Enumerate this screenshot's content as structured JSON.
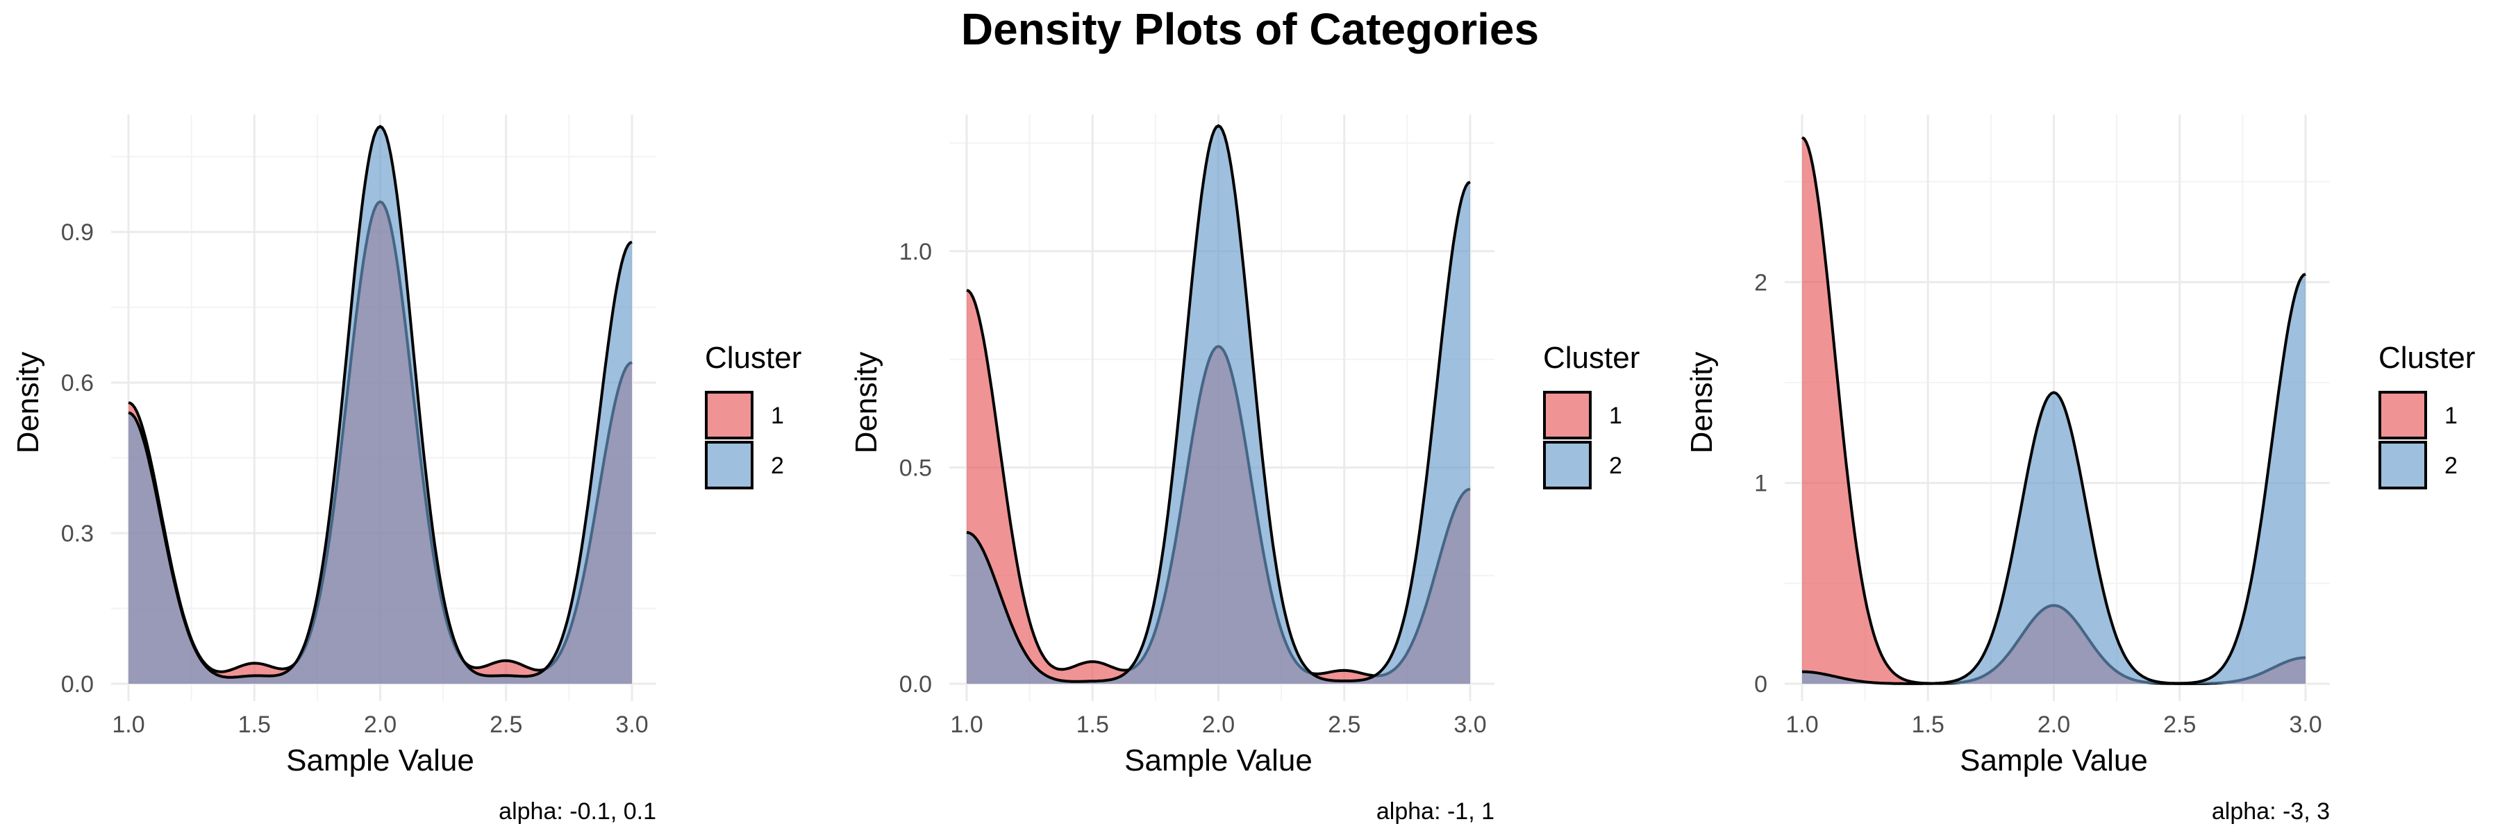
{
  "title": "Density Plots of Categories",
  "colors": {
    "cluster_1": "#E8595A",
    "cluster_2": "#6A9DCB",
    "outline": "#000000",
    "grid": "#EBEBEB"
  },
  "legend": {
    "title": "Cluster",
    "items": [
      "1",
      "2"
    ]
  },
  "chart_data": [
    {
      "type": "area",
      "title": "",
      "xlabel": "Sample Value",
      "ylabel": "Density",
      "caption": "alpha: -0.1, 0.1",
      "xlim": [
        1.0,
        3.0
      ],
      "ylim": [
        0,
        1.12
      ],
      "xticks": [
        "1.0",
        "1.5",
        "2.0",
        "2.5",
        "3.0"
      ],
      "yticks": [
        "0.0",
        "0.3",
        "0.6",
        "0.9"
      ],
      "ytick_values": [
        0.0,
        0.3,
        0.6,
        0.9
      ],
      "legend_position": "right",
      "grid": true,
      "x": [
        1.0,
        1.5,
        2.0,
        2.5,
        3.0
      ],
      "series": [
        {
          "name": "1",
          "values": [
            0.56,
            0.04,
            0.96,
            0.045,
            0.64
          ]
        },
        {
          "name": "2",
          "values": [
            0.54,
            0.015,
            1.11,
            0.015,
            0.88
          ]
        }
      ]
    },
    {
      "type": "area",
      "title": "",
      "xlabel": "Sample Value",
      "ylabel": "Density",
      "caption": "alpha: -1, 1",
      "xlim": [
        1.0,
        3.0
      ],
      "ylim": [
        0,
        1.3
      ],
      "xticks": [
        "1.0",
        "1.5",
        "2.0",
        "2.5",
        "3.0"
      ],
      "yticks": [
        "0.0",
        "0.5",
        "1.0"
      ],
      "ytick_values": [
        0.0,
        0.5,
        1.0
      ],
      "legend_position": "right",
      "grid": true,
      "x": [
        1.0,
        1.5,
        2.0,
        2.5,
        3.0
      ],
      "series": [
        {
          "name": "1",
          "values": [
            0.91,
            0.05,
            0.78,
            0.03,
            0.45
          ]
        },
        {
          "name": "2",
          "values": [
            0.35,
            0.005,
            1.29,
            0.005,
            1.16
          ]
        }
      ]
    },
    {
      "type": "area",
      "title": "",
      "xlabel": "Sample Value",
      "ylabel": "Density",
      "caption": "alpha: -3, 3",
      "xlim": [
        1.0,
        3.0
      ],
      "ylim": [
        0,
        2.8
      ],
      "xticks": [
        "1.0",
        "1.5",
        "2.0",
        "2.5",
        "3.0"
      ],
      "yticks": [
        "0",
        "1",
        "2"
      ],
      "ytick_values": [
        0,
        1,
        2
      ],
      "legend_position": "right",
      "grid": true,
      "x": [
        1.0,
        1.5,
        2.0,
        2.5,
        3.0
      ],
      "series": [
        {
          "name": "1",
          "values": [
            2.72,
            0.0,
            0.39,
            0.0,
            0.13
          ]
        },
        {
          "name": "2",
          "values": [
            0.06,
            0.0,
            1.45,
            0.0,
            2.04
          ]
        }
      ]
    }
  ]
}
